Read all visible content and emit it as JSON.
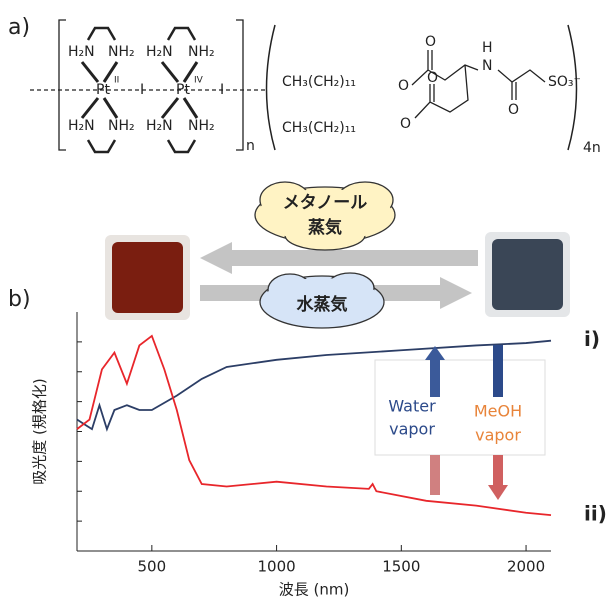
{
  "panel_labels": [
    "a)",
    "b)"
  ],
  "structure": {
    "labels": [
      "H₂N",
      "NH₂",
      "H₂N",
      "NH₂",
      "Pt",
      "II",
      "I",
      "Pt",
      "IV",
      "I",
      "H₂N",
      "NH₂",
      "H₂N",
      "NH₂",
      "n",
      "CH₃(CH₂)₁₁",
      "O",
      "O",
      "H",
      "N",
      "SO₃⁻",
      "O",
      "CH₃(CH₂)₁₁",
      "O",
      "O",
      "4n"
    ]
  },
  "clouds": {
    "methanol": [
      "メタノール",
      "蒸気"
    ],
    "water": "水蒸気"
  },
  "legend_box": {
    "water": [
      "Water",
      "vapor"
    ],
    "meoh": [
      "MeOH",
      "vapor"
    ]
  },
  "chart_data": {
    "type": "line",
    "x_label": "波長 (nm)",
    "y_label": "吸光度 (規格化)",
    "xlim": [
      200,
      2100
    ],
    "xticks": [
      500,
      1000,
      1500,
      2000
    ],
    "ylim": [
      0,
      1
    ],
    "series": [
      {
        "name": "i)",
        "color": "#2c3e66",
        "x": [
          200,
          230,
          260,
          290,
          320,
          350,
          400,
          450,
          500,
          600,
          700,
          800,
          1000,
          1200,
          1500,
          1800,
          2000,
          2100
        ],
        "values": [
          0.55,
          0.53,
          0.51,
          0.61,
          0.51,
          0.59,
          0.61,
          0.59,
          0.59,
          0.65,
          0.72,
          0.77,
          0.8,
          0.82,
          0.84,
          0.86,
          0.87,
          0.88
        ]
      },
      {
        "name": "ii)",
        "color": "#e8262b",
        "x": [
          200,
          250,
          300,
          350,
          400,
          450,
          500,
          550,
          600,
          650,
          700,
          800,
          1000,
          1200,
          1370,
          1385,
          1400,
          1600,
          1800,
          2000,
          2100
        ],
        "values": [
          0.51,
          0.55,
          0.76,
          0.83,
          0.7,
          0.86,
          0.9,
          0.76,
          0.59,
          0.38,
          0.28,
          0.27,
          0.29,
          0.27,
          0.26,
          0.28,
          0.25,
          0.21,
          0.19,
          0.16,
          0.15
        ]
      }
    ]
  }
}
